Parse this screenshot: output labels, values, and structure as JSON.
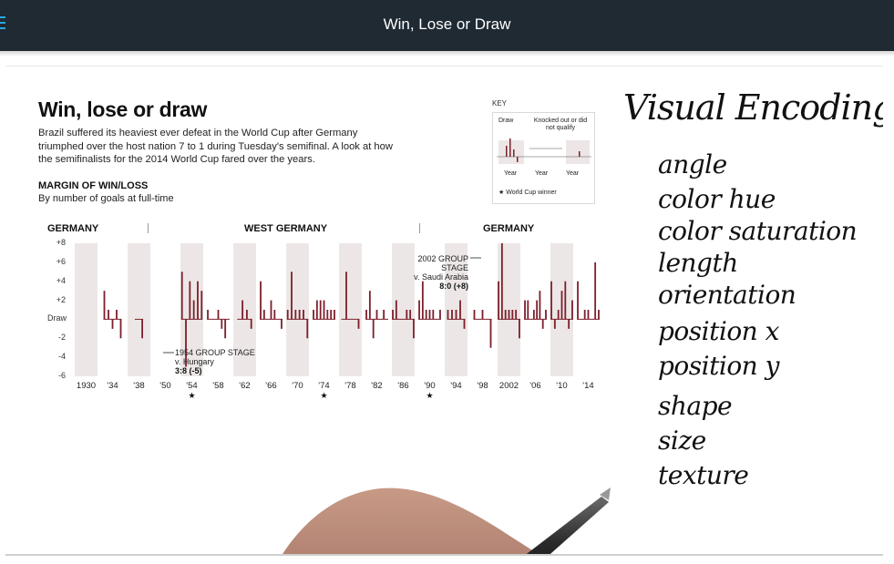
{
  "topbar": {
    "title": "Win, Lose or Draw",
    "menu_icon": "hamburger-icon",
    "menu_color": "#2aa7e0",
    "background": "#1f2a33"
  },
  "infographic": {
    "title": "Win, lose or draw",
    "description": "Brazil suffered its heaviest ever defeat in the World Cup after Germany triumphed over the host nation 7 to 1 during Tuesday's semifinal. A look at how the semifinalists for the 2014 World Cup fared over the years.",
    "subtitle": "MARGIN OF WIN/LOSS",
    "subtitle2": "By number of goals at full-time",
    "sections": [
      "GERMANY",
      "WEST GERMANY",
      "GERMANY"
    ],
    "key": {
      "label": "KEY",
      "draw": "Draw",
      "knocked": "Knocked out or did not qualify",
      "year": "Year",
      "winner": "★ World Cup winner"
    },
    "annotations": {
      "a1954_line1": "1954 GROUP STAGE",
      "a1954_line2": "v. Hungary",
      "a1954_score": "3:8 (-5)",
      "a2002_line1": "2002 GROUP STAGE",
      "a2002_line2": "v. Saudi Arabia",
      "a2002_score": "8:0 (+8)"
    }
  },
  "chart_data": {
    "type": "bar",
    "y_ticks": [
      "+8",
      "+6",
      "+4",
      "+2",
      "Draw",
      "-2",
      "-4",
      "-6"
    ],
    "ylim": [
      -6,
      8
    ],
    "x_tick_labels": [
      "1930",
      "'34",
      "'38",
      "'50",
      "'54",
      "'58",
      "'62",
      "'66",
      "'70",
      "'74",
      "'78",
      "'82",
      "'86",
      "'90",
      "'94",
      "'98",
      "2002",
      "'06",
      "'10",
      "'14"
    ],
    "winner_years": [
      "'54",
      "'74",
      "'90"
    ],
    "bar_color": "#7d1f2b",
    "band_color": "#ece7e6",
    "tournaments": [
      {
        "year": "1930",
        "margins": []
      },
      {
        "year": "'34",
        "margins": [
          3,
          1,
          -1,
          1,
          -2
        ]
      },
      {
        "year": "'38",
        "margins": [
          0,
          -2
        ]
      },
      {
        "year": "'50",
        "margins": []
      },
      {
        "year": "'54",
        "margins": [
          5,
          -5,
          4,
          2,
          4,
          3
        ]
      },
      {
        "year": "'58",
        "margins": [
          1,
          0,
          0,
          1,
          -1,
          -2,
          0
        ]
      },
      {
        "year": "'62",
        "margins": [
          0,
          2,
          1,
          -1
        ]
      },
      {
        "year": "'66",
        "margins": [
          4,
          1,
          0,
          2,
          1,
          0,
          -1
        ]
      },
      {
        "year": "'70",
        "margins": [
          1,
          5,
          1,
          1,
          1,
          -2
        ]
      },
      {
        "year": "'74",
        "margins": [
          1,
          2,
          2,
          2,
          1,
          1,
          1
        ]
      },
      {
        "year": "'78",
        "margins": [
          0,
          5,
          0,
          0,
          -1
        ]
      },
      {
        "year": "'82",
        "margins": [
          1,
          3,
          -2,
          1,
          0,
          1,
          0
        ]
      },
      {
        "year": "'86",
        "margins": [
          1,
          2,
          0,
          0,
          1,
          1,
          -2
        ]
      },
      {
        "year": "'90",
        "margins": [
          2,
          4,
          1,
          1,
          1,
          0,
          1
        ]
      },
      {
        "year": "'94",
        "margins": [
          1,
          1,
          1,
          2,
          -1
        ]
      },
      {
        "year": "'98",
        "margins": [
          1,
          0,
          1,
          0,
          -3
        ]
      },
      {
        "year": "2002",
        "margins": [
          4,
          8,
          1,
          1,
          1,
          1,
          -2
        ]
      },
      {
        "year": "'06",
        "margins": [
          2,
          2,
          0,
          1,
          2,
          3,
          -1,
          1
        ]
      },
      {
        "year": "'10",
        "margins": [
          4,
          -1,
          1,
          3,
          4,
          -1,
          2
        ]
      },
      {
        "year": "'14",
        "margins": [
          4,
          0,
          1,
          1,
          0,
          6,
          1
        ]
      }
    ]
  },
  "whiteboard": {
    "title": "Visual Encoding",
    "items": [
      "angle",
      "color hue",
      "color saturation",
      "length",
      "orientation",
      "position x",
      "position y",
      "shape",
      "size",
      "texture"
    ]
  }
}
